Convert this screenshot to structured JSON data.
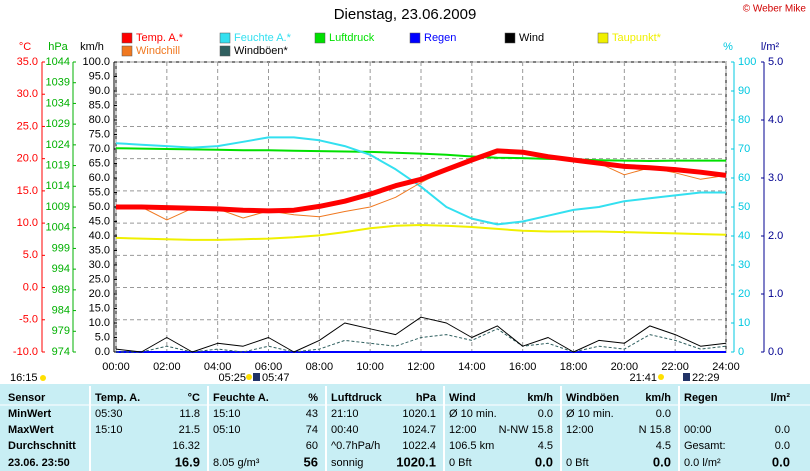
{
  "chart_data": {
    "type": "line",
    "title": "Dienstag, 23.06.2009",
    "credit": "© Weber Mike",
    "x": [
      0,
      1,
      2,
      3,
      4,
      5,
      6,
      7,
      8,
      9,
      10,
      11,
      12,
      13,
      14,
      15,
      16,
      17,
      18,
      19,
      20,
      21,
      22,
      23,
      24
    ],
    "xlim": [
      0,
      24
    ],
    "xticks": [
      {
        "value": 0,
        "label": "00:00"
      },
      {
        "value": 2,
        "label": "02:00"
      },
      {
        "value": 4,
        "label": "04:00"
      },
      {
        "value": 6,
        "label": "06:00"
      },
      {
        "value": 8,
        "label": "08:00"
      },
      {
        "value": 10,
        "label": "10:00"
      },
      {
        "value": 12,
        "label": "12:00"
      },
      {
        "value": 14,
        "label": "14:00"
      },
      {
        "value": 16,
        "label": "16:00"
      },
      {
        "value": 18,
        "label": "18:00"
      },
      {
        "value": 20,
        "label": "20:00"
      },
      {
        "value": 22,
        "label": "22:00"
      },
      {
        "value": 24,
        "label": "24:00"
      }
    ],
    "grid": true,
    "axes": [
      {
        "unit": "°C",
        "color": "#ff0000",
        "lim": [
          -10,
          35
        ],
        "ticks": [
          {
            "value": -10,
            "label": "-10.0"
          },
          {
            "value": -5,
            "label": "-5.0"
          },
          {
            "value": 0,
            "label": "0.0"
          },
          {
            "value": 5,
            "label": "5.0"
          },
          {
            "value": 10,
            "label": "10.0"
          },
          {
            "value": 15,
            "label": "15.0"
          },
          {
            "value": 20,
            "label": "20.0"
          },
          {
            "value": 25,
            "label": "25.0"
          },
          {
            "value": 30,
            "label": "30.0"
          },
          {
            "value": 35,
            "label": "35.0"
          }
        ]
      },
      {
        "unit": "hPa",
        "color": "#00b000",
        "lim": [
          974,
          1044
        ],
        "ticks": [
          974,
          979,
          984,
          989,
          994,
          999,
          1004,
          1009,
          1014,
          1019,
          1024,
          1029,
          1034,
          1039,
          1044
        ]
      },
      {
        "unit": "km/h",
        "color": "#000000",
        "lim": [
          0,
          100
        ],
        "ticks": [
          {
            "value": 0,
            "label": "0.0"
          },
          {
            "value": 5,
            "label": "5.0"
          },
          {
            "value": 10,
            "label": "10.0"
          },
          {
            "value": 15,
            "label": "15.0"
          },
          {
            "value": 20,
            "label": "20.0"
          },
          {
            "value": 25,
            "label": "25.0"
          },
          {
            "value": 30,
            "label": "30.0"
          },
          {
            "value": 35,
            "label": "35.0"
          },
          {
            "value": 40,
            "label": "40.0"
          },
          {
            "value": 45,
            "label": "45.0"
          },
          {
            "value": 50,
            "label": "50.0"
          },
          {
            "value": 55,
            "label": "55.0"
          },
          {
            "value": 60,
            "label": "60.0"
          },
          {
            "value": 65,
            "label": "65.0"
          },
          {
            "value": 70,
            "label": "70.0"
          },
          {
            "value": 75,
            "label": "75.0"
          },
          {
            "value": 80,
            "label": "80.0"
          },
          {
            "value": 85,
            "label": "85.0"
          },
          {
            "value": 90,
            "label": "90.0"
          },
          {
            "value": 95,
            "label": "95.0"
          },
          {
            "value": 100,
            "label": "100.0"
          }
        ]
      },
      {
        "unit": "%",
        "color": "#00c8e0",
        "lim": [
          0,
          100
        ],
        "ticks": [
          0,
          10,
          20,
          30,
          40,
          50,
          60,
          70,
          80,
          90,
          100
        ]
      },
      {
        "unit": "l/m²",
        "color": "#000090",
        "lim": [
          0,
          5
        ],
        "ticks": [
          {
            "value": 0,
            "label": "0.0"
          },
          {
            "value": 1,
            "label": "1.0"
          },
          {
            "value": 2,
            "label": "2.0"
          },
          {
            "value": 3,
            "label": "3.0"
          },
          {
            "value": 4,
            "label": "4.0"
          },
          {
            "value": 5,
            "label": "5.0"
          }
        ]
      }
    ],
    "series": [
      {
        "name": "Temp. A.*",
        "color": "#ff0000",
        "axis": 0,
        "values": [
          12.5,
          12.5,
          12.4,
          12.3,
          12.2,
          12,
          11.9,
          12,
          12.6,
          13.4,
          14.5,
          15.8,
          16.8,
          18.3,
          19.8,
          21.2,
          21,
          20.3,
          19.8,
          19.3,
          18.8,
          18.6,
          18.3,
          17.9,
          17.4
        ]
      },
      {
        "name": "Feuchte A.*",
        "color": "#33e0f0",
        "axis": 3,
        "values": [
          72,
          71.5,
          71,
          70.5,
          71,
          72.5,
          74,
          74,
          73,
          71,
          68,
          63,
          57,
          50,
          46,
          44,
          45,
          47,
          49,
          50,
          52,
          53,
          54,
          55,
          55
        ]
      },
      {
        "name": "Luftdruck",
        "color": "#00e000",
        "axis": 1,
        "values": [
          1023.2,
          1023.1,
          1023,
          1022.9,
          1022.8,
          1022.7,
          1022.7,
          1022.6,
          1022.5,
          1022.4,
          1022.3,
          1022.1,
          1021.9,
          1021.6,
          1021.2,
          1020.9,
          1020.8,
          1020.6,
          1020.5,
          1020.3,
          1020.2,
          1020.1,
          1020.2,
          1020.2,
          1020.2
        ]
      },
      {
        "name": "Regen",
        "color": "#0000ff",
        "axis": 4,
        "values": [
          0,
          0,
          0,
          0,
          0,
          0,
          0,
          0,
          0,
          0,
          0,
          0,
          0,
          0,
          0,
          0,
          0,
          0,
          0,
          0,
          0,
          0,
          0,
          0,
          0
        ]
      },
      {
        "name": "Wind",
        "color": "#000000",
        "axis": 2,
        "values": [
          1,
          0,
          5,
          0,
          3,
          2,
          5,
          0,
          4,
          10,
          8,
          6,
          12,
          10,
          5,
          9,
          2,
          5,
          0,
          4,
          3,
          9,
          6,
          2,
          3
        ]
      },
      {
        "name": "Taupunkt*",
        "color": "#f0f000",
        "axis": 0,
        "values": [
          7.7,
          7.6,
          7.5,
          7.4,
          7.4,
          7.5,
          7.6,
          7.8,
          8.1,
          8.6,
          9.2,
          9.6,
          9.7,
          9.6,
          9.4,
          9.1,
          8.8,
          8.7,
          8.7,
          8.7,
          8.6,
          8.5,
          8.4,
          8.3,
          8.2
        ]
      },
      {
        "name": "Windchill",
        "color": "#f07820",
        "axis": 0,
        "values": [
          12.5,
          12.5,
          10.5,
          12.3,
          12.2,
          10.8,
          11.9,
          11.3,
          11,
          11.8,
          12.5,
          14,
          16.3,
          18.3,
          19.8,
          21.2,
          21,
          20.3,
          19.8,
          19.3,
          17.5,
          18.6,
          17.8,
          16.8,
          17.4
        ]
      },
      {
        "name": "Windböen*",
        "color": "#306060",
        "axis": 2,
        "values": [
          0,
          0,
          2,
          0,
          1,
          0,
          2,
          0,
          1,
          4,
          3,
          2,
          5,
          6,
          4,
          8,
          2,
          3,
          0,
          2,
          1,
          6,
          4,
          1,
          2
        ]
      }
    ],
    "sun_moon_times": [
      "16:15",
      "05:25",
      "05:47",
      "21:41",
      "22:29"
    ]
  },
  "table": {
    "header": [
      "Sensor",
      "Temp. A.",
      "°C",
      "Feuchte A.",
      "%",
      "Luftdruck",
      "hPa",
      "Wind",
      "km/h",
      "Windböen",
      "km/h",
      "Regen",
      "l/m²"
    ],
    "rows": [
      [
        "MinWert",
        "05:30",
        "11.8",
        "15:10",
        "43",
        "21:10",
        "1020.1",
        "Ø 10 min.",
        "0.0",
        "Ø 10 min.",
        "0.0",
        null,
        null
      ],
      [
        "MaxWert",
        "15:10",
        "21.5",
        "05:10",
        "74",
        "00:40",
        "1024.7",
        "12:00",
        "N-NW 15.8",
        "12:00",
        "N 15.8",
        "00:00",
        "0.0"
      ],
      [
        "Durchschnitt",
        null,
        "16.32",
        null,
        "60",
        "^0.7hPa/h",
        "1022.4",
        "106.5 km",
        "4.5",
        null,
        "4.5",
        "Gesamt:",
        "0.0"
      ],
      [
        "23.06. 23:50",
        null,
        "16.9",
        "8.05 g/m³",
        "56",
        "sonnig",
        "1020.1",
        "0 Bft",
        "0.0",
        "0 Bft",
        "0.0",
        "0.0 l/m²",
        "0.0"
      ]
    ]
  }
}
